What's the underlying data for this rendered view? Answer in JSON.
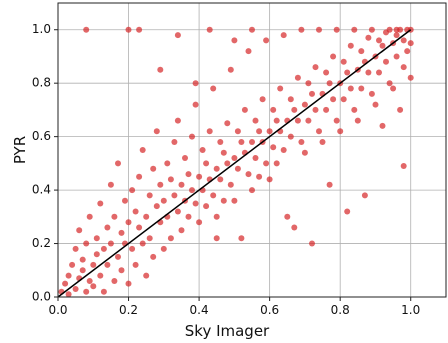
{
  "chart_data": {
    "type": "scatter",
    "title": "",
    "xlabel": "Sky Imager",
    "ylabel": "PYR",
    "xlim": [
      0.0,
      1.1
    ],
    "ylim": [
      0.0,
      1.1
    ],
    "grid": true,
    "legend": "none",
    "xticks": [
      "0.0",
      "0.2",
      "0.4",
      "0.6",
      "0.8",
      "1.0"
    ],
    "yticks": [
      "0.0",
      "0.2",
      "0.4",
      "0.6",
      "0.8",
      "1.0"
    ],
    "xtick_values": [
      0.0,
      0.2,
      0.4,
      0.6,
      0.8,
      1.0
    ],
    "ytick_values": [
      0.0,
      0.2,
      0.4,
      0.6,
      0.8,
      1.0
    ],
    "point_color": "#d62728",
    "point_alpha": 0.7,
    "reference_line": {
      "x": [
        0.0,
        1.0
      ],
      "y": [
        0.0,
        1.0
      ],
      "color": "#000000"
    },
    "series": [
      {
        "values": [
          [
            0.01,
            0.02
          ],
          [
            0.02,
            0.05
          ],
          [
            0.03,
            0.01
          ],
          [
            0.03,
            0.08
          ],
          [
            0.04,
            0.12
          ],
          [
            0.05,
            0.03
          ],
          [
            0.05,
            0.18
          ],
          [
            0.06,
            0.07
          ],
          [
            0.06,
            0.25
          ],
          [
            0.07,
            0.1
          ],
          [
            0.07,
            0.14
          ],
          [
            0.08,
            0.02
          ],
          [
            0.08,
            0.2
          ],
          [
            0.09,
            0.06
          ],
          [
            0.09,
            0.3
          ],
          [
            0.1,
            0.12
          ],
          [
            0.1,
            0.04
          ],
          [
            0.11,
            0.22
          ],
          [
            0.11,
            0.16
          ],
          [
            0.12,
            0.08
          ],
          [
            0.12,
            0.35
          ],
          [
            0.13,
            0.18
          ],
          [
            0.13,
            0.02
          ],
          [
            0.14,
            0.26
          ],
          [
            0.14,
            0.12
          ],
          [
            0.15,
            0.42
          ],
          [
            0.15,
            0.2
          ],
          [
            0.16,
            0.06
          ],
          [
            0.16,
            0.3
          ],
          [
            0.17,
            0.15
          ],
          [
            0.17,
            0.5
          ],
          [
            0.18,
            0.24
          ],
          [
            0.18,
            0.1
          ],
          [
            0.19,
            0.36
          ],
          [
            0.19,
            0.2
          ],
          [
            0.2,
            0.28
          ],
          [
            0.2,
            0.05
          ],
          [
            0.21,
            0.4
          ],
          [
            0.21,
            0.18
          ],
          [
            0.22,
            0.32
          ],
          [
            0.22,
            0.12
          ],
          [
            0.23,
            0.45
          ],
          [
            0.23,
            0.26
          ],
          [
            0.24,
            0.2
          ],
          [
            0.24,
            0.55
          ],
          [
            0.25,
            0.3
          ],
          [
            0.25,
            0.08
          ],
          [
            0.26,
            0.38
          ],
          [
            0.26,
            0.22
          ],
          [
            0.27,
            0.48
          ],
          [
            0.27,
            0.15
          ],
          [
            0.28,
            0.34
          ],
          [
            0.28,
            0.62
          ],
          [
            0.29,
            0.28
          ],
          [
            0.29,
            0.42
          ],
          [
            0.3,
            0.36
          ],
          [
            0.3,
            0.18
          ],
          [
            0.31,
            0.5
          ],
          [
            0.31,
            0.3
          ],
          [
            0.32,
            0.44
          ],
          [
            0.32,
            0.22
          ],
          [
            0.33,
            0.58
          ],
          [
            0.33,
            0.38
          ],
          [
            0.34,
            0.32
          ],
          [
            0.34,
            0.66
          ],
          [
            0.35,
            0.42
          ],
          [
            0.35,
            0.25
          ],
          [
            0.36,
            0.52
          ],
          [
            0.36,
            0.36
          ],
          [
            0.37,
            0.46
          ],
          [
            0.37,
            0.3
          ],
          [
            0.38,
            0.6
          ],
          [
            0.38,
            0.4
          ],
          [
            0.39,
            0.35
          ],
          [
            0.39,
            0.72
          ],
          [
            0.4,
            0.45
          ],
          [
            0.4,
            0.28
          ],
          [
            0.41,
            0.55
          ],
          [
            0.41,
            0.4
          ],
          [
            0.42,
            0.5
          ],
          [
            0.42,
            0.34
          ],
          [
            0.43,
            0.62
          ],
          [
            0.43,
            0.44
          ],
          [
            0.44,
            0.38
          ],
          [
            0.44,
            0.78
          ],
          [
            0.45,
            0.48
          ],
          [
            0.45,
            0.3
          ],
          [
            0.46,
            0.58
          ],
          [
            0.46,
            0.44
          ],
          [
            0.47,
            0.54
          ],
          [
            0.47,
            0.36
          ],
          [
            0.48,
            0.65
          ],
          [
            0.48,
            0.5
          ],
          [
            0.49,
            0.42
          ],
          [
            0.49,
            0.85
          ],
          [
            0.5,
            0.52
          ],
          [
            0.5,
            0.36
          ],
          [
            0.51,
            0.62
          ],
          [
            0.51,
            0.48
          ],
          [
            0.52,
            0.58
          ],
          [
            0.52,
            0.22
          ],
          [
            0.53,
            0.7
          ],
          [
            0.53,
            0.54
          ],
          [
            0.54,
            0.46
          ],
          [
            0.54,
            0.92
          ],
          [
            0.55,
            0.58
          ],
          [
            0.55,
            0.4
          ],
          [
            0.56,
            0.66
          ],
          [
            0.56,
            0.52
          ],
          [
            0.57,
            0.62
          ],
          [
            0.57,
            0.45
          ],
          [
            0.58,
            0.74
          ],
          [
            0.58,
            0.58
          ],
          [
            0.59,
            0.5
          ],
          [
            0.59,
            0.96
          ],
          [
            0.6,
            0.62
          ],
          [
            0.6,
            0.44
          ],
          [
            0.61,
            0.7
          ],
          [
            0.61,
            0.56
          ],
          [
            0.62,
            0.66
          ],
          [
            0.62,
            0.5
          ],
          [
            0.63,
            0.78
          ],
          [
            0.63,
            0.62
          ],
          [
            0.64,
            0.55
          ],
          [
            0.64,
            0.98
          ],
          [
            0.65,
            0.66
          ],
          [
            0.65,
            0.3
          ],
          [
            0.66,
            0.74
          ],
          [
            0.66,
            0.6
          ],
          [
            0.67,
            0.7
          ],
          [
            0.67,
            0.26
          ],
          [
            0.68,
            0.82
          ],
          [
            0.68,
            0.66
          ],
          [
            0.69,
            0.58
          ],
          [
            0.69,
            1.0
          ],
          [
            0.7,
            0.72
          ],
          [
            0.7,
            0.54
          ],
          [
            0.71,
            0.8
          ],
          [
            0.71,
            0.66
          ],
          [
            0.72,
            0.76
          ],
          [
            0.72,
            0.2
          ],
          [
            0.73,
            0.86
          ],
          [
            0.73,
            0.7
          ],
          [
            0.74,
            0.62
          ],
          [
            0.74,
            1.0
          ],
          [
            0.75,
            0.76
          ],
          [
            0.75,
            0.58
          ],
          [
            0.76,
            0.84
          ],
          [
            0.76,
            0.7
          ],
          [
            0.77,
            0.8
          ],
          [
            0.77,
            0.42
          ],
          [
            0.78,
            0.9
          ],
          [
            0.78,
            0.74
          ],
          [
            0.79,
            0.66
          ],
          [
            0.79,
            1.0
          ],
          [
            0.8,
            0.8
          ],
          [
            0.8,
            0.62
          ],
          [
            0.81,
            0.88
          ],
          [
            0.81,
            0.74
          ],
          [
            0.82,
            0.84
          ],
          [
            0.82,
            0.32
          ],
          [
            0.83,
            0.94
          ],
          [
            0.83,
            0.78
          ],
          [
            0.84,
            0.7
          ],
          [
            0.84,
            1.0
          ],
          [
            0.85,
            0.85
          ],
          [
            0.85,
            0.66
          ],
          [
            0.86,
            0.92
          ],
          [
            0.86,
            0.78
          ],
          [
            0.87,
            0.88
          ],
          [
            0.87,
            0.38
          ],
          [
            0.88,
            0.97
          ],
          [
            0.88,
            0.84
          ],
          [
            0.89,
            0.76
          ],
          [
            0.89,
            1.0
          ],
          [
            0.9,
            0.9
          ],
          [
            0.9,
            0.72
          ],
          [
            0.91,
            0.96
          ],
          [
            0.91,
            0.84
          ],
          [
            0.92,
            0.94
          ],
          [
            0.92,
            0.64
          ],
          [
            0.93,
            0.99
          ],
          [
            0.93,
            0.88
          ],
          [
            0.94,
            0.8
          ],
          [
            0.94,
            1.0
          ],
          [
            0.95,
            0.95
          ],
          [
            0.95,
            0.78
          ],
          [
            0.96,
            0.98
          ],
          [
            0.96,
            0.9
          ],
          [
            0.97,
            1.0
          ],
          [
            0.97,
            0.7
          ],
          [
            0.98,
            0.96
          ],
          [
            0.98,
            0.86
          ],
          [
            0.99,
            1.0
          ],
          [
            0.99,
            0.92
          ],
          [
            1.0,
            1.0
          ],
          [
            1.0,
            0.82
          ],
          [
            1.0,
            0.95
          ],
          [
            0.98,
            0.49
          ],
          [
            0.96,
            1.0
          ],
          [
            0.08,
            1.0
          ],
          [
            0.2,
            1.0
          ],
          [
            0.23,
            1.0
          ],
          [
            0.43,
            1.0
          ],
          [
            0.55,
            1.0
          ],
          [
            0.34,
            0.98
          ],
          [
            0.5,
            0.96
          ],
          [
            0.39,
            0.8
          ],
          [
            0.29,
            0.85
          ],
          [
            0.45,
            0.22
          ]
        ]
      }
    ]
  }
}
